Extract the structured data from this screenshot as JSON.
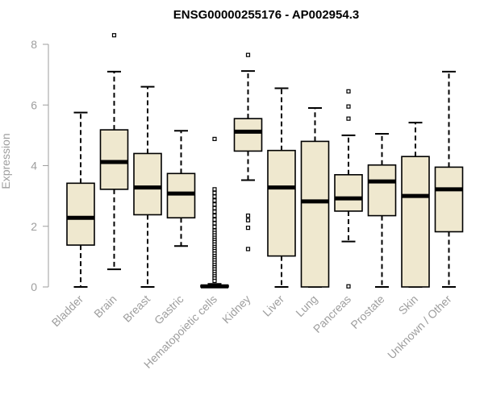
{
  "chart_data": {
    "type": "boxplot",
    "title": "ENSG00000255176 - AP002954.3",
    "xlabel": "",
    "ylabel": "Expression",
    "ylim": [
      0,
      8
    ],
    "yticks": [
      0,
      2,
      4,
      6,
      8
    ],
    "grid": false,
    "colors": {
      "box_fill": "#efe8cf",
      "stroke": "#000000",
      "axis": "#9e9e9e"
    },
    "categories": [
      "Bladder",
      "Brain",
      "Breast",
      "Gastric",
      "Hematopoietic cells",
      "Kidney",
      "Liver",
      "Lung",
      "Pancreas",
      "Prostate",
      "Skin",
      "Unknown / Other"
    ],
    "series": [
      {
        "category": "Bladder",
        "min": 0.0,
        "q1": 1.38,
        "median": 2.28,
        "q3": 3.42,
        "max": 5.75,
        "outliers": []
      },
      {
        "category": "Brain",
        "min": 0.58,
        "q1": 3.22,
        "median": 4.12,
        "q3": 5.18,
        "max": 7.1,
        "outliers": [
          8.3
        ]
      },
      {
        "category": "Breast",
        "min": 0.0,
        "q1": 2.38,
        "median": 3.28,
        "q3": 4.4,
        "max": 6.6,
        "outliers": []
      },
      {
        "category": "Gastric",
        "min": 1.35,
        "q1": 2.28,
        "median": 3.08,
        "q3": 3.74,
        "max": 5.15,
        "outliers": []
      },
      {
        "category": "Hematopoietic cells",
        "min": 0.0,
        "q1": 0.0,
        "median": 0.02,
        "q3": 0.05,
        "max": 0.1,
        "outliers": [
          4.88,
          3.22,
          3.1,
          2.98,
          2.85,
          2.72,
          2.6,
          2.48,
          2.35,
          2.22,
          2.1,
          1.98,
          1.86,
          1.78,
          1.7,
          1.62,
          1.55,
          1.48,
          1.4,
          1.32,
          1.25,
          1.18,
          1.1,
          1.02,
          0.95,
          0.88,
          0.8,
          0.72,
          0.65,
          0.58,
          0.5,
          0.42,
          0.35,
          0.28,
          0.2
        ]
      },
      {
        "category": "Kidney",
        "min": 3.52,
        "q1": 4.48,
        "median": 5.12,
        "q3": 5.55,
        "max": 7.12,
        "outliers": [
          7.65,
          2.35,
          2.2,
          1.95,
          1.25
        ]
      },
      {
        "category": "Liver",
        "min": 0.0,
        "q1": 1.02,
        "median": 3.28,
        "q3": 4.5,
        "max": 6.55,
        "outliers": []
      },
      {
        "category": "Lung",
        "min": 0.0,
        "q1": 0.0,
        "median": 2.82,
        "q3": 4.8,
        "max": 5.9,
        "outliers": []
      },
      {
        "category": "Pancreas",
        "min": 1.5,
        "q1": 2.5,
        "median": 2.92,
        "q3": 3.7,
        "max": 5.0,
        "outliers": [
          6.45,
          5.95,
          5.55,
          0.02
        ]
      },
      {
        "category": "Prostate",
        "min": 0.0,
        "q1": 2.35,
        "median": 3.48,
        "q3": 4.02,
        "max": 5.05,
        "outliers": []
      },
      {
        "category": "Skin",
        "min": 0.0,
        "q1": 0.0,
        "median": 3.0,
        "q3": 4.3,
        "max": 5.42,
        "outliers": []
      },
      {
        "category": "Unknown / Other",
        "min": 0.0,
        "q1": 1.82,
        "median": 3.22,
        "q3": 3.95,
        "max": 7.1,
        "outliers": []
      }
    ]
  }
}
